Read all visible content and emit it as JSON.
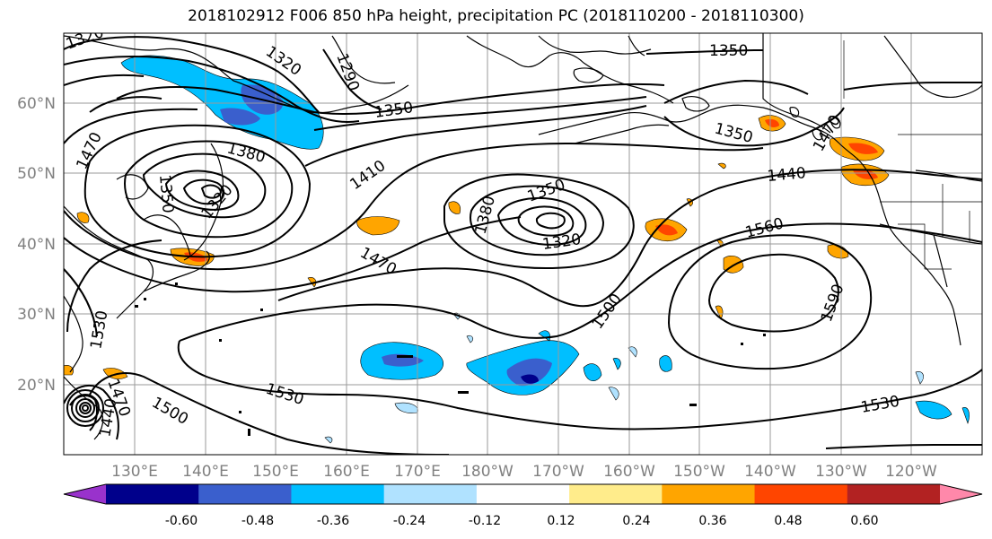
{
  "title": "2018102912 F006 850 hPa height, precipitation PC (2018110200 - 2018110300)",
  "lat_labels": [
    "60°N",
    "50°N",
    "40°N",
    "30°N",
    "20°N"
  ],
  "lon_labels": [
    "130°E",
    "140°E",
    "150°E",
    "160°E",
    "170°E",
    "180°W",
    "170°W",
    "160°W",
    "150°W",
    "140°W",
    "130°W",
    "120°W"
  ],
  "contour_labels": [
    "1320",
    "1320",
    "1290",
    "1350",
    "1350",
    "1380",
    "1410",
    "1470",
    "1350",
    "1380",
    "1320",
    "1320",
    "1470",
    "1500",
    "1350",
    "1350",
    "1440",
    "1560",
    "1590",
    "1530",
    "1530",
    "1500",
    "1530",
    "1470",
    "1440",
    "1470"
  ],
  "colorbar": {
    "ticks": [
      "-0.60",
      "-0.48",
      "-0.36",
      "-0.24",
      "-0.12",
      "0.12",
      "0.24",
      "0.36",
      "0.48",
      "0.60"
    ],
    "colors": [
      "#9932cc",
      "#00008b",
      "#3a5fcd",
      "#00bfff",
      "#b0e2ff",
      "#ffffff",
      "#ffec8b",
      "#ffa500",
      "#ff4500",
      "#b22222",
      "#ff88aa"
    ]
  }
}
